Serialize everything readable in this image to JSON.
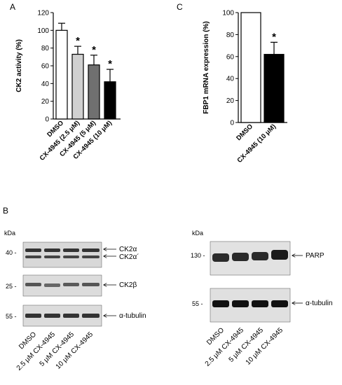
{
  "panel_labels": {
    "a": "A",
    "b": "B",
    "c": "C"
  },
  "colors": {
    "white_bar": "#ffffff",
    "light_gray_bar": "#d0d0d0",
    "dark_gray_bar": "#707070",
    "black_bar": "#000000",
    "blot_bg": "#d8d8d8",
    "band": "#2a2a2a"
  },
  "chart_data": [
    {
      "type": "bar",
      "panel": "A",
      "ylabel": "CK2 activity (%)",
      "ylim": [
        0,
        120
      ],
      "yticks": [
        "0",
        "20",
        "40",
        "60",
        "80",
        "100",
        "120"
      ],
      "categories": [
        "DMSO",
        "CX-4945 (2.5 μM)",
        "CX-4945 (5 μM)",
        "CX-4945 (10 μM)"
      ],
      "values": [
        100,
        73,
        61,
        42
      ],
      "errors": [
        8,
        9,
        11,
        14
      ],
      "significance": [
        "",
        "*",
        "*",
        "*"
      ],
      "bar_colors": [
        "#ffffff",
        "#d0d0d0",
        "#707070",
        "#000000"
      ]
    },
    {
      "type": "bar",
      "panel": "C",
      "ylabel": "FBP1 mRNA expression (%)",
      "ylim": [
        0,
        100
      ],
      "yticks": [
        "0",
        "20",
        "40",
        "60",
        "80",
        "100"
      ],
      "categories": [
        "DMSO",
        "CX-4945 (10 μM)"
      ],
      "values": [
        100,
        62
      ],
      "errors": [
        0,
        11
      ],
      "significance": [
        "",
        "*"
      ],
      "bar_colors": [
        "#ffffff",
        "#000000"
      ]
    }
  ],
  "blots_left": {
    "kda": "kDa",
    "rows": [
      {
        "marker": "40 -",
        "labels": [
          "CK2α",
          "CK2α´"
        ]
      },
      {
        "marker": "25 -",
        "labels": [
          "CK2β"
        ]
      },
      {
        "marker": "55 -",
        "labels": [
          "α-tubulin"
        ]
      }
    ],
    "lanes": [
      "DMSO",
      "2.5 μM CX-4945",
      "5 μM CX-4945",
      "10 μM CX-4945"
    ]
  },
  "blots_right": {
    "kda": "kDa",
    "rows": [
      {
        "marker": "130 -",
        "labels": [
          "PARP"
        ]
      },
      {
        "marker": "55 -",
        "labels": [
          "α-tubulin"
        ]
      }
    ],
    "lanes": [
      "DMSO",
      "2.5 μM CX-4945",
      "5 μM CX-4945",
      "10 μM CX-4945"
    ]
  }
}
